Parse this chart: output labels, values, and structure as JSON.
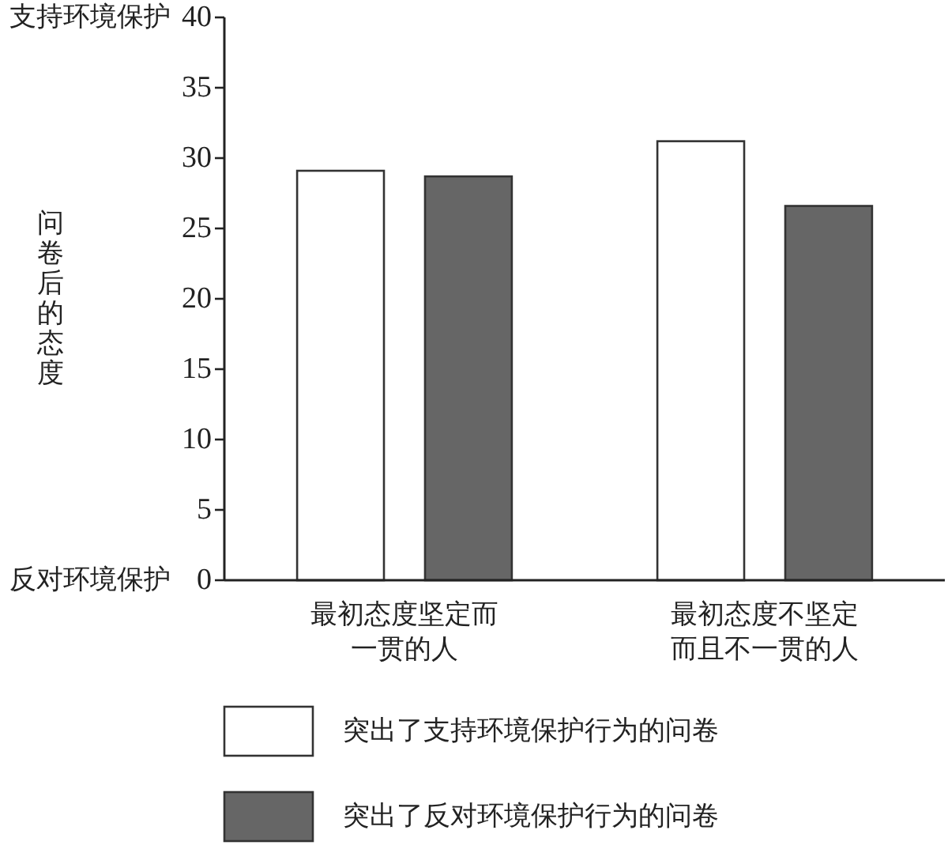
{
  "chart_data": {
    "type": "bar",
    "ylabel": "问卷后的态度",
    "categories": [
      "最初态度坚定而一贯的人",
      "最初态度不坚定而且不一贯的人"
    ],
    "series": [
      {
        "name": "突出了支持环境保护行为的问卷",
        "color": "#ffffff",
        "values": [
          29.1,
          31.2
        ]
      },
      {
        "name": "突出了反对环境保护行为的问卷",
        "color": "#666666",
        "values": [
          28.7,
          26.6
        ]
      }
    ],
    "ylim": [
      0,
      40
    ],
    "yticks": [
      0,
      5,
      10,
      15,
      20,
      25,
      30,
      35,
      40
    ],
    "grid": false,
    "legend": "bottom",
    "annotations": [
      "支持环境保护",
      "反对环境保护"
    ]
  }
}
